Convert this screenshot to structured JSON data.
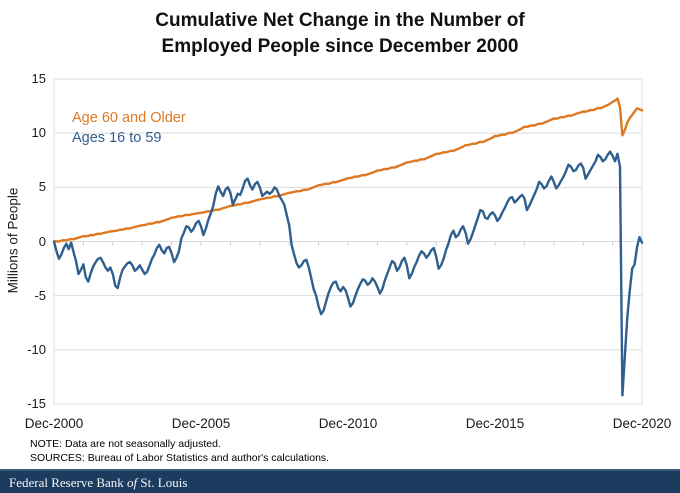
{
  "title": {
    "line1": "Cumulative Net Change in the Number of",
    "line2": "Employed People since December 2000"
  },
  "notes": {
    "note": "NOTE: Data are not seasonally adjusted.",
    "sources": "SOURCES: Bureau of Labor Statistics and author's calculations."
  },
  "footer": {
    "brand_prefix": "Federal Reserve Bank ",
    "brand_of": "of",
    "brand_suffix": " St. Louis",
    "bar_color": "#1b3b5f"
  },
  "chart_data": {
    "type": "line",
    "title": "Cumulative Net Change in the Number of Employed People since December 2000",
    "ylabel": "Millions of People",
    "ylim": [
      -15,
      15
    ],
    "y_ticks": [
      15,
      10,
      5,
      0,
      -5,
      -10,
      -15
    ],
    "x_tick_labels": [
      "Dec-2000",
      "Dec-2005",
      "Dec-2010",
      "Dec-2015",
      "Dec-2020"
    ],
    "x_start": "2000-12",
    "x_end": "2020-12",
    "frequency": "monthly",
    "n_points": 241,
    "grid": "horizontal",
    "gridline_color": "#dcdcdc",
    "axis_tick_color": "#c9c9c9",
    "legend_position": "top-left-inside",
    "series": [
      {
        "name": "Age 60 and Older",
        "color": "#de7921",
        "values": [
          0.0,
          0.02,
          0.0,
          0.08,
          0.12,
          0.1,
          0.18,
          0.22,
          0.2,
          0.28,
          0.35,
          0.42,
          0.5,
          0.48,
          0.52,
          0.6,
          0.58,
          0.66,
          0.72,
          0.7,
          0.78,
          0.82,
          0.88,
          0.92,
          0.95,
          0.98,
          1.02,
          1.1,
          1.08,
          1.16,
          1.22,
          1.2,
          1.28,
          1.34,
          1.4,
          1.46,
          1.5,
          1.52,
          1.58,
          1.66,
          1.64,
          1.72,
          1.8,
          1.78,
          1.86,
          1.94,
          2.02,
          2.1,
          2.2,
          2.22,
          2.28,
          2.34,
          2.32,
          2.4,
          2.46,
          2.44,
          2.5,
          2.55,
          2.58,
          2.62,
          2.65,
          2.68,
          2.74,
          2.8,
          2.78,
          2.86,
          2.94,
          2.92,
          3.0,
          3.08,
          3.14,
          3.22,
          3.3,
          3.3,
          3.36,
          3.44,
          3.42,
          3.5,
          3.58,
          3.56,
          3.62,
          3.7,
          3.76,
          3.84,
          3.9,
          3.92,
          3.98,
          4.04,
          4.02,
          4.1,
          4.18,
          4.16,
          4.24,
          4.3,
          4.36,
          4.44,
          4.5,
          4.52,
          4.58,
          4.64,
          4.62,
          4.7,
          4.78,
          4.76,
          4.84,
          4.92,
          5.0,
          5.1,
          5.2,
          5.22,
          5.28,
          5.34,
          5.32,
          5.4,
          5.48,
          5.46,
          5.54,
          5.62,
          5.68,
          5.76,
          5.85,
          5.86,
          5.92,
          6.0,
          5.98,
          6.06,
          6.14,
          6.12,
          6.2,
          6.28,
          6.36,
          6.44,
          6.55,
          6.56,
          6.62,
          6.7,
          6.68,
          6.76,
          6.84,
          6.82,
          6.92,
          7.0,
          7.1,
          7.2,
          7.3,
          7.32,
          7.38,
          7.46,
          7.44,
          7.52,
          7.6,
          7.58,
          7.68,
          7.78,
          7.88,
          7.98,
          8.1,
          8.1,
          8.16,
          8.24,
          8.22,
          8.3,
          8.38,
          8.36,
          8.46,
          8.56,
          8.66,
          8.76,
          8.9,
          8.9,
          8.96,
          9.04,
          9.02,
          9.12,
          9.2,
          9.18,
          9.28,
          9.38,
          9.48,
          9.6,
          9.75,
          9.74,
          9.8,
          9.88,
          9.86,
          9.96,
          10.04,
          10.02,
          10.12,
          10.22,
          10.32,
          10.45,
          10.6,
          10.58,
          10.64,
          10.72,
          10.7,
          10.8,
          10.88,
          10.86,
          10.96,
          11.05,
          11.15,
          11.25,
          11.35,
          11.34,
          11.4,
          11.48,
          11.46,
          11.55,
          11.62,
          11.6,
          11.7,
          11.78,
          11.86,
          11.92,
          12.0,
          11.98,
          12.05,
          12.15,
          12.12,
          12.22,
          12.32,
          12.3,
          12.4,
          12.5,
          12.6,
          12.72,
          12.9,
          13.0,
          13.2,
          12.4,
          9.8,
          10.3,
          11.0,
          11.4,
          11.7,
          12.0,
          12.3,
          12.2,
          12.1
        ]
      },
      {
        "name": "Ages 16 to 59",
        "color": "#2e5f8f",
        "values": [
          0.0,
          -0.9,
          -1.6,
          -1.2,
          -0.6,
          -0.2,
          -0.7,
          -0.1,
          -1.0,
          -1.8,
          -3.0,
          -2.6,
          -2.1,
          -3.3,
          -3.7,
          -2.9,
          -2.3,
          -1.9,
          -1.6,
          -1.5,
          -1.9,
          -2.4,
          -2.7,
          -2.4,
          -3.0,
          -4.1,
          -4.3,
          -3.3,
          -2.6,
          -2.3,
          -2.0,
          -1.9,
          -2.2,
          -2.7,
          -2.5,
          -2.2,
          -2.6,
          -3.0,
          -2.8,
          -2.2,
          -1.6,
          -1.2,
          -0.6,
          -0.3,
          -0.8,
          -1.1,
          -0.6,
          -0.5,
          -1.1,
          -1.9,
          -1.5,
          -0.9,
          0.3,
          0.8,
          1.4,
          1.3,
          0.9,
          1.2,
          1.7,
          1.9,
          1.4,
          0.6,
          1.2,
          2.0,
          2.6,
          3.3,
          4.4,
          5.1,
          4.6,
          4.2,
          4.8,
          5.0,
          4.5,
          3.4,
          3.9,
          4.4,
          4.3,
          4.9,
          5.6,
          5.8,
          5.2,
          4.8,
          5.3,
          5.5,
          5.0,
          4.2,
          4.4,
          4.6,
          4.4,
          4.6,
          5.0,
          4.8,
          4.2,
          3.8,
          3.4,
          2.4,
          1.5,
          -0.3,
          -1.2,
          -2.0,
          -2.4,
          -2.2,
          -1.8,
          -1.7,
          -2.4,
          -3.4,
          -4.4,
          -5.0,
          -6.0,
          -6.7,
          -6.4,
          -5.6,
          -4.8,
          -4.2,
          -3.8,
          -3.7,
          -4.3,
          -4.6,
          -4.2,
          -4.5,
          -5.2,
          -6.0,
          -5.7,
          -5.0,
          -4.4,
          -3.9,
          -3.5,
          -3.6,
          -4.0,
          -3.8,
          -3.4,
          -3.7,
          -4.2,
          -4.8,
          -4.4,
          -3.6,
          -3.0,
          -2.4,
          -1.8,
          -2.0,
          -2.7,
          -2.4,
          -1.8,
          -1.5,
          -2.2,
          -3.4,
          -3.0,
          -2.4,
          -1.9,
          -1.3,
          -0.9,
          -1.1,
          -1.5,
          -1.2,
          -0.8,
          -0.6,
          -1.4,
          -2.5,
          -2.2,
          -1.6,
          -0.8,
          -0.2,
          0.6,
          1.0,
          0.4,
          0.6,
          1.1,
          1.4,
          0.8,
          -0.2,
          0.2,
          0.8,
          1.5,
          2.2,
          2.9,
          2.8,
          2.2,
          2.1,
          2.5,
          2.7,
          2.4,
          1.9,
          2.2,
          2.7,
          3.1,
          3.6,
          4.0,
          4.1,
          3.6,
          3.8,
          4.1,
          4.3,
          4.0,
          2.9,
          3.3,
          3.8,
          4.3,
          4.8,
          5.5,
          5.3,
          4.9,
          5.1,
          5.6,
          6.0,
          5.5,
          4.9,
          5.2,
          5.6,
          6.0,
          6.5,
          7.1,
          6.9,
          6.5,
          6.6,
          7.0,
          7.2,
          6.8,
          5.8,
          6.2,
          6.6,
          7.0,
          7.4,
          8.0,
          7.8,
          7.4,
          7.6,
          8.0,
          8.3,
          7.9,
          7.4,
          8.1,
          6.9,
          -14.2,
          -10.5,
          -7.0,
          -4.5,
          -2.5,
          -2.1,
          -0.5,
          0.4,
          -0.1
        ]
      }
    ]
  }
}
